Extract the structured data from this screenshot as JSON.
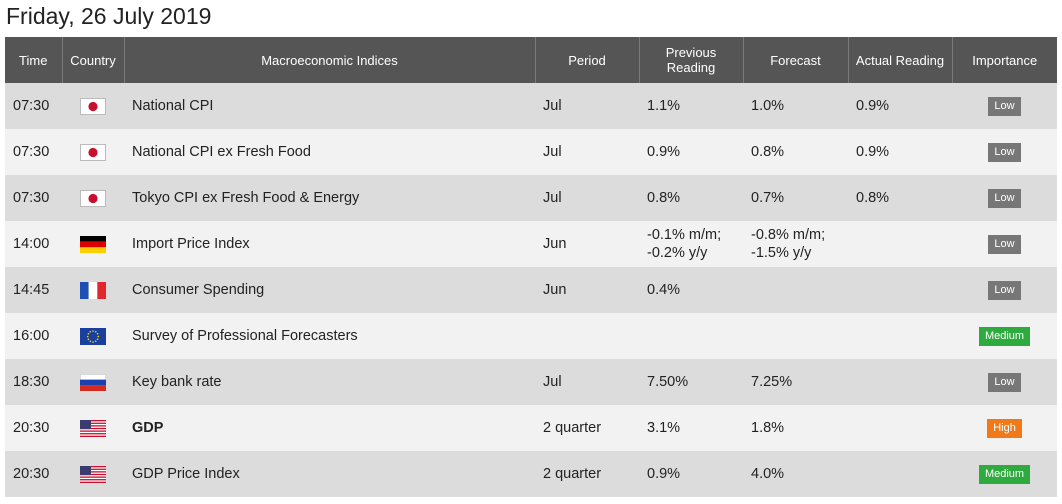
{
  "title": "Friday, 26 July 2019",
  "headers": {
    "time": "Time",
    "country": "Country",
    "index": "Macroeconomic Indices",
    "period": "Period",
    "previous_line1": "Previous",
    "previous_line2": "Reading",
    "forecast": "Forecast",
    "actual": "Actual Reading",
    "importance": "Importance"
  },
  "colors": {
    "header_bg": "#555555",
    "row_odd": "#dcdcdc",
    "row_even": "#f2f2f2",
    "actual_below": "#e02020",
    "actual_above": "#2e8b3a",
    "importance_low": "#777777",
    "importance_medium": "#2faa3f",
    "importance_high": "#f07a1a"
  },
  "rows": [
    {
      "time": "07:30",
      "country_icon": "japan-flag-icon",
      "index": "National CPI",
      "period": "Jul",
      "previous": "1.1%",
      "previous2": "",
      "forecast": "1.0%",
      "forecast2": "",
      "actual": "0.9%",
      "importance": "Low"
    },
    {
      "time": "07:30",
      "country_icon": "japan-flag-icon",
      "index": "National CPI ex Fresh Food",
      "period": "Jul",
      "previous": "0.9%",
      "previous2": "",
      "forecast": "0.8%",
      "forecast2": "",
      "actual": "0.9%",
      "importance": "Low"
    },
    {
      "time": "07:30",
      "country_icon": "japan-flag-icon",
      "index": "Tokyo CPI ex Fresh Food & Energy",
      "period": "Jul",
      "previous": "0.8%",
      "previous2": "",
      "forecast": "0.7%",
      "forecast2": "",
      "actual": "0.8%",
      "importance": "Low"
    },
    {
      "time": "14:00",
      "country_icon": "germany-flag-icon",
      "index": "Import Price Index",
      "period": "Jun",
      "previous": "-0.1% m/m;",
      "previous2": "-0.2% y/y",
      "forecast": "-0.8% m/m;",
      "forecast2": "-1.5% y/y",
      "actual": "",
      "importance": "Low"
    },
    {
      "time": "14:45",
      "country_icon": "france-flag-icon",
      "index": "Consumer Spending",
      "period": "Jun",
      "previous": "0.4%",
      "previous2": "",
      "forecast": "",
      "forecast2": "",
      "actual": "",
      "importance": "Low"
    },
    {
      "time": "16:00",
      "country_icon": "eu-flag-icon",
      "index": "Survey of Professional Forecasters",
      "period": "",
      "previous": "",
      "previous2": "",
      "forecast": "",
      "forecast2": "",
      "actual": "",
      "importance": "Medium"
    },
    {
      "time": "18:30",
      "country_icon": "russia-flag-icon",
      "index": "Key bank rate",
      "period": "Jul",
      "previous": "7.50%",
      "previous2": "",
      "forecast": "7.25%",
      "forecast2": "",
      "actual": "",
      "importance": "Low"
    },
    {
      "time": "20:30",
      "country_icon": "usa-flag-icon",
      "index": "GDP",
      "period": "2 quarter",
      "previous": "3.1%",
      "previous2": "",
      "forecast": "1.8%",
      "forecast2": "",
      "actual": "",
      "importance": "High"
    },
    {
      "time": "20:30",
      "country_icon": "usa-flag-icon",
      "index": "GDP Price Index",
      "period": "2 quarter",
      "previous": "0.9%",
      "previous2": "",
      "forecast": "4.0%",
      "forecast2": "",
      "actual": "",
      "importance": "Medium"
    }
  ]
}
